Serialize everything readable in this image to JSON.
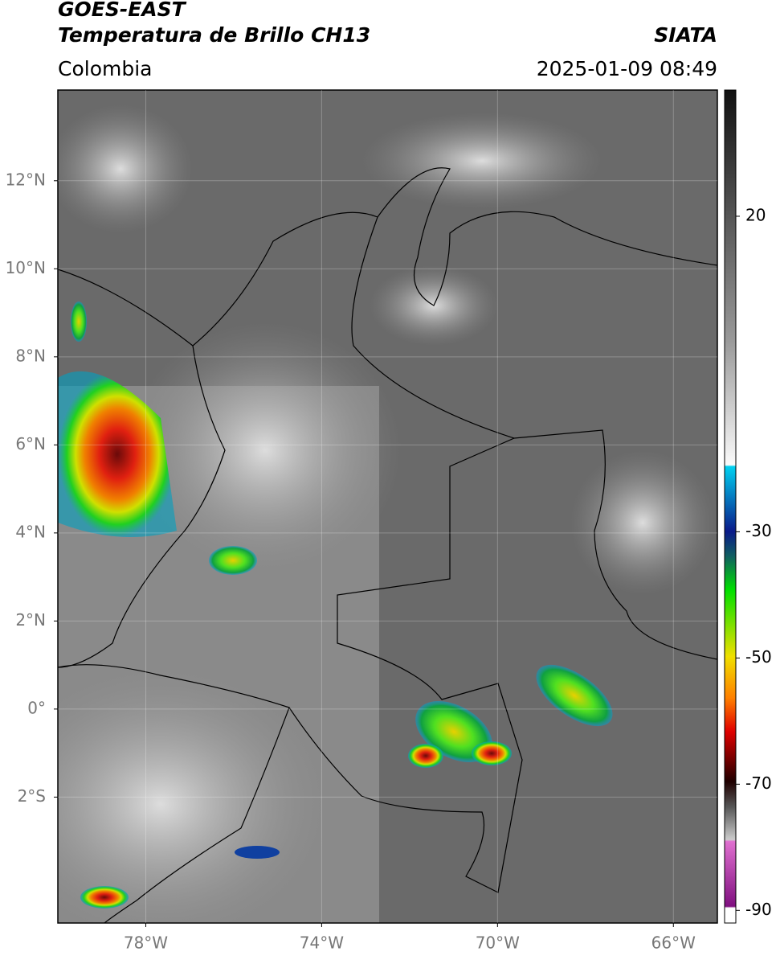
{
  "header": {
    "title": "GOES-EAST",
    "subtitle": "Temperatura de Brillo CH13",
    "region": "Colombia",
    "source": "SIATA",
    "datetime": "2025-01-09 08:49"
  },
  "map": {
    "lonlim": [
      -80,
      -65
    ],
    "latlim": [
      -4.86,
      14.06
    ],
    "lat_ticks": [
      {
        "value": 12,
        "label": "12°N"
      },
      {
        "value": 10,
        "label": "10°N"
      },
      {
        "value": 8,
        "label": "8°N"
      },
      {
        "value": 6,
        "label": "6°N"
      },
      {
        "value": 4,
        "label": "4°N"
      },
      {
        "value": 2,
        "label": "2°N"
      },
      {
        "value": 0,
        "label": "0°"
      },
      {
        "value": -2,
        "label": "2°S"
      }
    ],
    "lon_ticks": [
      {
        "value": -78,
        "label": "78°W"
      },
      {
        "value": -74,
        "label": "74°W"
      },
      {
        "value": -70,
        "label": "70°W"
      },
      {
        "value": -66,
        "label": "66°W"
      }
    ]
  },
  "colorbar": {
    "lim": [
      -92,
      40
    ],
    "ticks": [
      20,
      -30,
      -50,
      -70,
      -90
    ]
  }
}
